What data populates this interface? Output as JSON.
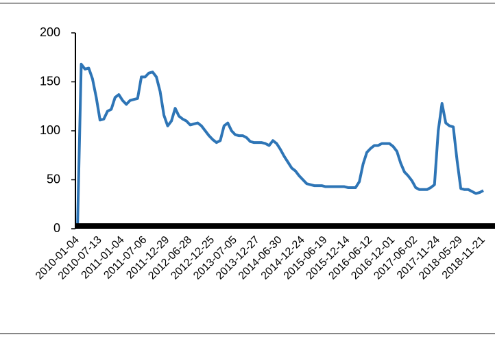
{
  "chart_data": {
    "type": "line",
    "categories": [
      "2010-01-04",
      null,
      null,
      null,
      null,
      null,
      "2010-07-13",
      null,
      null,
      null,
      null,
      null,
      "2011-01-04",
      null,
      null,
      null,
      null,
      null,
      "2011-07-06",
      null,
      null,
      null,
      null,
      null,
      "2011-12-29",
      null,
      null,
      null,
      null,
      null,
      "2012-06-28",
      null,
      null,
      null,
      null,
      null,
      "2012-12-25",
      null,
      null,
      null,
      null,
      null,
      "2013-07-05",
      null,
      null,
      null,
      null,
      null,
      "2013-12-27",
      null,
      null,
      null,
      null,
      null,
      "2014-06-30",
      null,
      null,
      null,
      null,
      null,
      "2014-12-24",
      null,
      null,
      null,
      null,
      null,
      "2015-06-19",
      null,
      null,
      null,
      null,
      null,
      "2015-12-14",
      null,
      null,
      null,
      null,
      null,
      "2016-06-12",
      null,
      null,
      null,
      null,
      null,
      "2016-12-01",
      null,
      null,
      null,
      null,
      null,
      "2017-06-02",
      null,
      null,
      null,
      null,
      null,
      "2017-11-24",
      null,
      null,
      null,
      null,
      null,
      "2018-05-29",
      null,
      null,
      null,
      null,
      null,
      "2018-11-21"
    ],
    "values": [
      0,
      168,
      163,
      164,
      153,
      134,
      111,
      112,
      120,
      122,
      134,
      137,
      131,
      127,
      131,
      132,
      133,
      155,
      155,
      159,
      160,
      155,
      140,
      116,
      105,
      110,
      123,
      115,
      112,
      110,
      106,
      107,
      108,
      105,
      100,
      95,
      91,
      88,
      90,
      105,
      108,
      100,
      96,
      95,
      95,
      93,
      89,
      88,
      88,
      88,
      87,
      85,
      90,
      87,
      81,
      74,
      68,
      62,
      59,
      54,
      50,
      46,
      45,
      44,
      44,
      44,
      43,
      43,
      43,
      43,
      43,
      43,
      42,
      42,
      42,
      48,
      66,
      78,
      82,
      85,
      85,
      87,
      87,
      87,
      84,
      79,
      67,
      58,
      54,
      49,
      42,
      40,
      40,
      40,
      42,
      45,
      100,
      128,
      108,
      105,
      104,
      70,
      41,
      40,
      40,
      38,
      36,
      37,
      39
    ],
    "color": "#2e75b6",
    "ylim": [
      0,
      200
    ],
    "yticks": [
      0,
      50,
      100,
      150,
      200
    ],
    "grid": false
  }
}
